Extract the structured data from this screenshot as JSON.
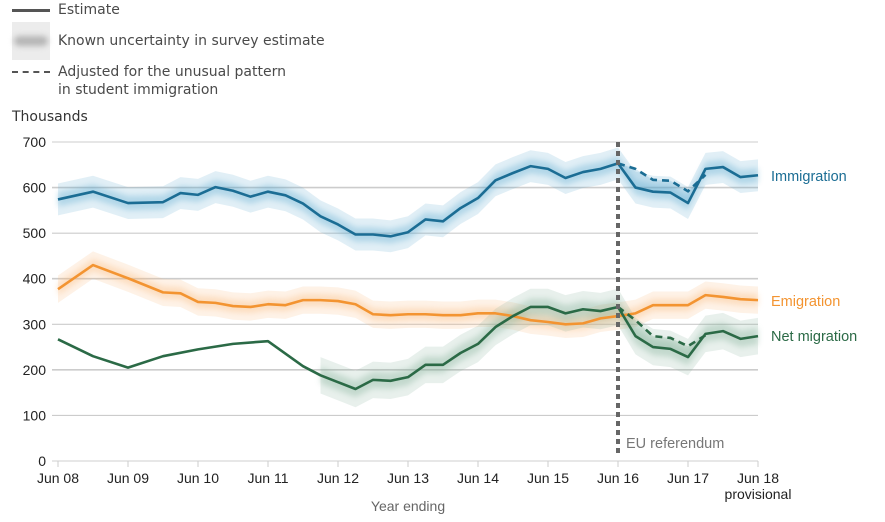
{
  "legend": {
    "estimate": "Estimate",
    "uncertainty": "Known uncertainty in survey estimate",
    "adjusted_line1": "Adjusted for the unusual pattern",
    "adjusted_line2": "in student immigration"
  },
  "chart_data": {
    "type": "line",
    "title": "",
    "ylabel": "Thousands",
    "xlabel": "Year ending",
    "ylim": [
      0,
      700
    ],
    "yticks": [
      0,
      100,
      200,
      300,
      400,
      500,
      600,
      700
    ],
    "grid": true,
    "x_tick_labels": [
      "Jun 08",
      "Jun 09",
      "Jun 10",
      "Jun 11",
      "Jun 12",
      "Jun 13",
      "Jun 14",
      "Jun 15",
      "Jun 16",
      "Jun 17",
      "Jun 18"
    ],
    "x_tick_sublabel": "provisional",
    "x_note": "x values are years since Jun 2008 (year ending), quarterly steps of 0.25",
    "annotation": {
      "label": "EU referendum",
      "x": 8
    },
    "legend_placement": "top-left",
    "series": [
      {
        "name": "Immigration",
        "color": "#1b6d94",
        "band_color": "#5aa9cf",
        "uncertainty": 35,
        "x": [
          0,
          0.5,
          1,
          1.5,
          1.75,
          2,
          2.25,
          2.5,
          2.75,
          3,
          3.25,
          3.5,
          3.75,
          4,
          4.25,
          4.5,
          4.75,
          5,
          5.25,
          5.5,
          5.75,
          6,
          6.25,
          6.5,
          6.75,
          7,
          7.25,
          7.5,
          7.75,
          8,
          8.25,
          8.5,
          8.75,
          9,
          9.25,
          9.5,
          9.75,
          10
        ],
        "values": [
          574,
          591,
          566,
          568,
          588,
          584,
          601,
          593,
          580,
          591,
          583,
          565,
          537,
          519,
          497,
          497,
          493,
          502,
          530,
          526,
          555,
          577,
          616,
          632,
          647,
          641,
          621,
          634,
          641,
          653,
          600,
          591,
          589,
          566,
          641,
          645,
          623,
          627
        ],
        "adjusted": {
          "x": [
            8,
            8.25,
            8.5,
            8.75,
            9,
            9.25
          ],
          "values": [
            653,
            641,
            617,
            615,
            592,
            628
          ]
        }
      },
      {
        "name": "Emigration",
        "color": "#f39431",
        "band_color": "#f9b878",
        "uncertainty": 30,
        "x": [
          0,
          0.5,
          1,
          1.5,
          1.75,
          2,
          2.25,
          2.5,
          2.75,
          3,
          3.25,
          3.5,
          3.75,
          4,
          4.25,
          4.5,
          4.75,
          5,
          5.25,
          5.5,
          5.75,
          6,
          6.25,
          6.5,
          6.75,
          7,
          7.25,
          7.5,
          7.75,
          8,
          8.25,
          8.5,
          8.75,
          9,
          9.25,
          9.5,
          9.75,
          10
        ],
        "values": [
          377,
          430,
          401,
          370,
          368,
          349,
          347,
          340,
          338,
          344,
          342,
          353,
          353,
          351,
          344,
          322,
          320,
          322,
          322,
          320,
          320,
          324,
          324,
          318,
          309,
          305,
          300,
          302,
          313,
          318,
          324,
          342,
          342,
          342,
          364,
          360,
          355,
          353
        ]
      },
      {
        "name": "Net migration",
        "color": "#2b6a46",
        "band_color": "#7fae95",
        "uncertainty": 40,
        "band_from_x": 3.75,
        "x": [
          0,
          0.5,
          1,
          1.5,
          2,
          2.5,
          3,
          3.5,
          3.75,
          4,
          4.25,
          4.5,
          4.75,
          5,
          5.25,
          5.5,
          5.75,
          6,
          6.25,
          6.5,
          6.75,
          7,
          7.25,
          7.5,
          7.75,
          8,
          8.25,
          8.5,
          8.75,
          9,
          9.25,
          9.5,
          9.75,
          10
        ],
        "values": [
          267,
          230,
          205,
          230,
          245,
          257,
          263,
          208,
          188,
          173,
          158,
          178,
          176,
          184,
          211,
          211,
          237,
          257,
          294,
          318,
          338,
          338,
          324,
          333,
          329,
          338,
          274,
          250,
          246,
          228,
          279,
          285,
          268,
          274
        ],
        "adjusted": {
          "x": [
            8,
            8.25,
            8.5,
            8.75,
            9,
            9.25
          ],
          "values": [
            338,
            309,
            274,
            270,
            252,
            276
          ]
        }
      }
    ]
  }
}
